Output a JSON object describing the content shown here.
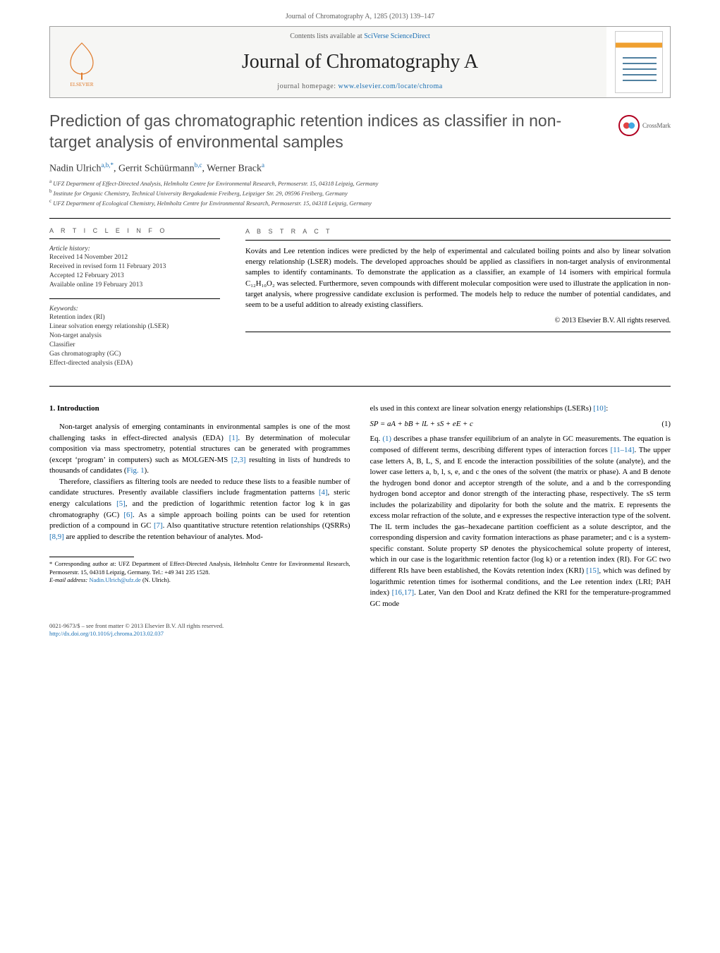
{
  "running_head": "Journal of Chromatography A, 1285 (2013) 139–147",
  "banner": {
    "contents_prefix": "Contents lists available at ",
    "contents_link": "SciVerse ScienceDirect",
    "journal_title": "Journal of Chromatography A",
    "homepage_prefix": "journal homepage: ",
    "homepage_link": "www.elsevier.com/locate/chroma",
    "publisher_logo_label": "ELSEVIER"
  },
  "crossmark_label": "CrossMark",
  "title": "Prediction of gas chromatographic retention indices as classifier in non-target analysis of environmental samples",
  "authors_html": "Nadin Ulrich<sup>a,b,*</sup>, Gerrit Schüürmann<sup>b,c</sup>, Werner Brack<sup>a</sup>",
  "affiliations": [
    "a UFZ Department of Effect-Directed Analysis, Helmholtz Centre for Environmental Research, Permoserstr. 15, 04318 Leipzig, Germany",
    "b Institute for Organic Chemistry, Technical University Bergakademie Freiberg, Leipziger Str. 29, 09596 Freiberg, Germany",
    "c UFZ Department of Ecological Chemistry, Helmholtz Centre for Environmental Research, Permoserstr. 15, 04318 Leipzig, Germany"
  ],
  "article_info_heading": "A R T I C L E   I N F O",
  "abstract_heading": "A B S T R A C T",
  "history": {
    "label": "Article history:",
    "received": "Received 14 November 2012",
    "revised": "Received in revised form 11 February 2013",
    "accepted": "Accepted 12 February 2013",
    "online": "Available online 19 February 2013"
  },
  "keywords_label": "Keywords:",
  "keywords": [
    "Retention index (RI)",
    "Linear solvation energy relationship (LSER)",
    "Non-target analysis",
    "Classifier",
    "Gas chromatography (GC)",
    "Effect-directed analysis (EDA)"
  ],
  "abstract_text": "Kováts and Lee retention indices were predicted by the help of experimental and calculated boiling points and also by linear solvation energy relationship (LSER) models. The developed approaches should be applied as classifiers in non-target analysis of environmental samples to identify contaminants. To demonstrate the application as a classifier, an example of 14 isomers with empirical formula C₁₂H₁₀O₂ was selected. Furthermore, seven compounds with different molecular composition were used to illustrate the application in non-target analysis, where progressive candidate exclusion is performed. The models help to reduce the number of potential candidates, and seem to be a useful addition to already existing classifiers.",
  "copyright": "© 2013 Elsevier B.V. All rights reserved.",
  "section1": {
    "heading": "1.  Introduction",
    "p1": "Non-target analysis of emerging contaminants in environmental samples is one of the most challenging tasks in effect-directed analysis (EDA) [1]. By determination of molecular composition via mass spectrometry, potential structures can be generated with programmes (except ‘program’ in computers) such as MOLGEN-MS [2,3] resulting in lists of hundreds to thousands of candidates (Fig. 1).",
    "p2": "Therefore, classifiers as filtering tools are needed to reduce these lists to a feasible number of candidate structures. Presently available classifiers include fragmentation patterns [4], steric energy calculations [5], and the prediction of logarithmic retention factor log k in gas chromatography (GC) [6]. As a simple approach boiling points can be used for retention prediction of a compound in GC [7]. Also quantitative structure retention relationships (QSRRs) [8,9] are applied to describe the retention behaviour of analytes. Mod-"
  },
  "col2": {
    "lead": "els used in this context are linear solvation energy relationships (LSERs) [10]:",
    "equation": "SP = aA + bB + lL + sS + eE + c",
    "eqnum": "(1)",
    "p_after_eq": "Eq. (1) describes a phase transfer equilibrium of an analyte in GC measurements. The equation is composed of different terms, describing different types of interaction forces [11–14]. The upper case letters A, B, L, S, and E encode the interaction possibilities of the solute (analyte), and the lower case letters a, b, l, s, e, and c the ones of the solvent (the matrix or phase). A and B denote the hydrogen bond donor and acceptor strength of the solute, and a and b the corresponding hydrogen bond acceptor and donor strength of the interacting phase, respectively. The sS term includes the polarizability and dipolarity for both the solute and the matrix. E represents the excess molar refraction of the solute, and e expresses the respective interaction type of the solvent. The lL term includes the gas–hexadecane partition coefficient as a solute descriptor, and the corresponding dispersion and cavity formation interactions as phase parameter; and c is a system-specific constant. Solute property SP denotes the physicochemical solute property of interest, which in our case is the logarithmic retention factor (log k) or a retention index (RI). For GC two different RIs have been established, the Kováts retention index (KRI) [15], which was defined by logarithmic retention times for isothermal conditions, and the Lee retention index (LRI; PAH index) [16,17]. Later, Van den Dool and Kratz defined the KRI for the temperature-programmed GC mode"
  },
  "footnotes": {
    "corresponding": "* Corresponding author at: UFZ Department of Effect-Directed Analysis, Helmholtz Centre for Environmental Research, Permoserstr. 15, 04318 Leipzig, Germany. Tel.: +49 341 235 1528.",
    "email_label": "E-mail address: ",
    "email": "Nadin.Ulrich@ufz.de",
    "email_attrib": " (N. Ulrich)."
  },
  "footer": {
    "issn_line": "0021-9673/$ – see front matter © 2013 Elsevier B.V. All rights reserved.",
    "doi_label": "http://dx.doi.org/",
    "doi": "10.1016/j.chroma.2013.02.037"
  },
  "colors": {
    "link": "#1a6fb3",
    "text": "#000000",
    "muted": "#606060",
    "heading_grey": "#505050",
    "rule": "#000000",
    "crossmark_ring": "#b00020"
  },
  "typography": {
    "body_pt": 10.8,
    "title_pt": 23,
    "journal_title_pt": 28,
    "small_pt": 9,
    "footnote_pt": 8.5
  }
}
